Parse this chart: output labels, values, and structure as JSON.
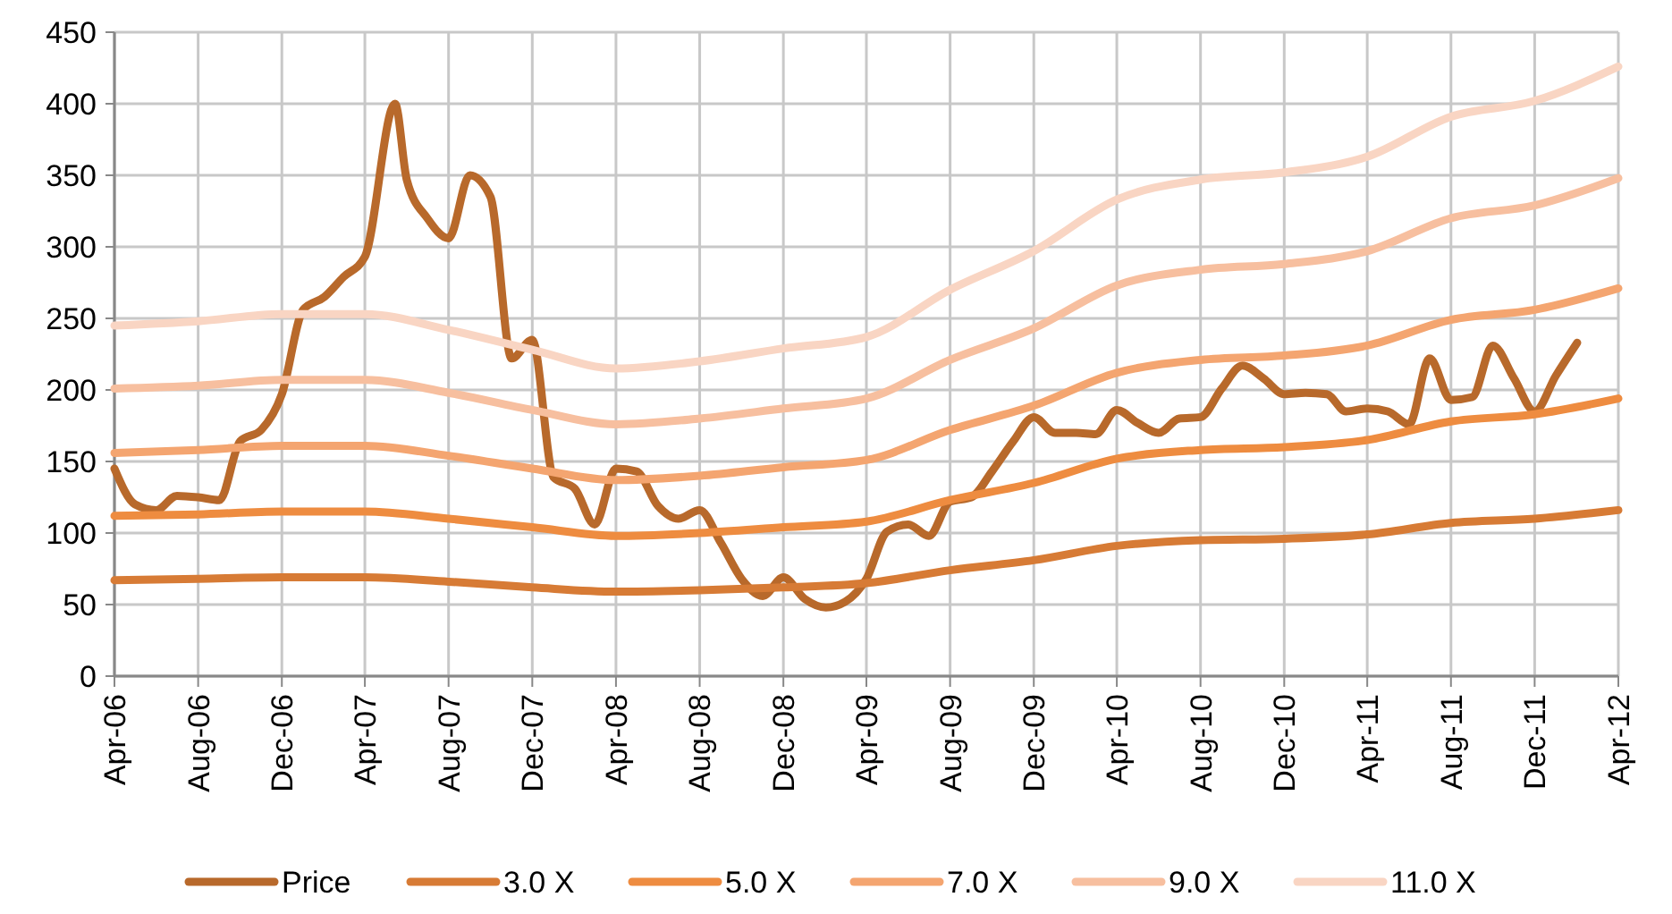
{
  "chart_data": {
    "type": "line",
    "legend": "bottom",
    "grid": true,
    "line_style": "solid",
    "marker": "none",
    "ylim": [
      0,
      450
    ],
    "yticks": [
      0,
      50,
      100,
      150,
      200,
      250,
      300,
      350,
      400,
      450
    ],
    "xlim": [
      "2006-04",
      "2012-04"
    ],
    "xticks": [
      {
        "value": "2006-04",
        "label": "Apr-06"
      },
      {
        "value": "2006-08",
        "label": "Aug-06"
      },
      {
        "value": "2006-12",
        "label": "Dec-06"
      },
      {
        "value": "2007-04",
        "label": "Apr-07"
      },
      {
        "value": "2007-08",
        "label": "Aug-07"
      },
      {
        "value": "2007-12",
        "label": "Dec-07"
      },
      {
        "value": "2008-04",
        "label": "Apr-08"
      },
      {
        "value": "2008-08",
        "label": "Aug-08"
      },
      {
        "value": "2008-12",
        "label": "Dec-08"
      },
      {
        "value": "2009-04",
        "label": "Apr-09"
      },
      {
        "value": "2009-08",
        "label": "Aug-09"
      },
      {
        "value": "2009-12",
        "label": "Dec-09"
      },
      {
        "value": "2010-04",
        "label": "Apr-10"
      },
      {
        "value": "2010-08",
        "label": "Aug-10"
      },
      {
        "value": "2010-12",
        "label": "Dec-10"
      },
      {
        "value": "2011-04",
        "label": "Apr-11"
      },
      {
        "value": "2011-08",
        "label": "Aug-11"
      },
      {
        "value": "2011-12",
        "label": "Dec-11"
      },
      {
        "value": "2012-04",
        "label": "Apr-12"
      }
    ],
    "x": [
      "2006-04",
      "2006-08",
      "2006-12",
      "2007-04",
      "2007-08",
      "2007-12",
      "2008-04",
      "2008-08",
      "2008-12",
      "2009-04",
      "2009-08",
      "2009-12",
      "2010-04",
      "2010-08",
      "2010-12",
      "2011-04",
      "2011-08",
      "2011-12",
      "2012-04"
    ],
    "series": [
      {
        "name": "Price",
        "color": "#b8692b",
        "x": [
          "2006-04",
          "2006-05",
          "2006-06",
          "2006-07",
          "2006-08",
          "2006-09",
          "2006-10",
          "2006-11",
          "2006-12",
          "2007-01",
          "2007-02",
          "2007-03",
          "2007-04",
          "2007-05-15",
          "2007-06",
          "2007-07",
          "2007-08",
          "2007-09",
          "2007-10",
          "2007-11",
          "2007-12",
          "2008-01",
          "2008-02",
          "2008-03",
          "2008-04",
          "2008-05",
          "2008-06",
          "2008-07",
          "2008-08",
          "2008-09",
          "2008-10",
          "2008-11",
          "2008-12",
          "2009-01",
          "2009-02",
          "2009-03",
          "2009-04",
          "2009-05",
          "2009-06",
          "2009-07",
          "2009-08",
          "2009-09",
          "2009-10",
          "2009-11",
          "2009-12",
          "2010-01",
          "2010-02",
          "2010-03",
          "2010-04",
          "2010-05",
          "2010-06",
          "2010-07",
          "2010-08",
          "2010-09",
          "2010-10",
          "2010-11",
          "2010-12",
          "2011-01",
          "2011-02",
          "2011-03",
          "2011-04",
          "2011-05",
          "2011-06",
          "2011-07",
          "2011-08",
          "2011-09",
          "2011-10",
          "2011-11",
          "2011-12",
          "2012-01",
          "2012-02"
        ],
        "values": [
          145,
          120,
          116,
          126,
          125,
          123,
          164,
          172,
          197,
          256,
          265,
          279,
          293,
          400,
          347,
          320,
          306,
          350,
          335,
          222,
          235,
          139,
          131,
          106,
          145,
          143,
          119,
          110,
          116,
          93,
          68,
          56,
          69,
          54,
          48,
          52,
          68,
          101,
          106,
          98,
          122,
          125,
          143,
          164,
          181,
          170,
          170,
          169,
          186,
          177,
          170,
          180,
          181,
          201,
          217,
          208,
          197,
          198,
          197,
          185,
          187,
          185,
          176,
          222,
          193,
          195,
          231,
          208,
          185,
          210,
          233
        ]
      },
      {
        "name": "3.0 X",
        "color": "#d77b35",
        "values": [
          67,
          68,
          69,
          69,
          66,
          62,
          59,
          60,
          62,
          65,
          74,
          81,
          91,
          95,
          96,
          99,
          107,
          110,
          116
        ]
      },
      {
        "name": "5.0 X",
        "color": "#ee8c40",
        "values": [
          112,
          113,
          115,
          115,
          110,
          104,
          98,
          100,
          104,
          108,
          123,
          135,
          152,
          158,
          160,
          165,
          178,
          183,
          194
        ]
      },
      {
        "name": "7.0 X",
        "color": "#f4a570",
        "values": [
          156,
          158,
          161,
          161,
          154,
          145,
          137,
          140,
          146,
          151,
          172,
          189,
          212,
          221,
          224,
          231,
          249,
          256,
          271
        ]
      },
      {
        "name": "9.0 X",
        "color": "#f7bf9f",
        "values": [
          201,
          203,
          207,
          207,
          198,
          186,
          176,
          180,
          187,
          194,
          221,
          243,
          273,
          284,
          288,
          297,
          320,
          329,
          348
        ]
      },
      {
        "name": "11.0 X",
        "color": "#f9d5c3",
        "values": [
          245,
          248,
          253,
          253,
          242,
          228,
          215,
          220,
          229,
          237,
          270,
          297,
          333,
          347,
          352,
          363,
          391,
          402,
          426
        ]
      }
    ]
  }
}
